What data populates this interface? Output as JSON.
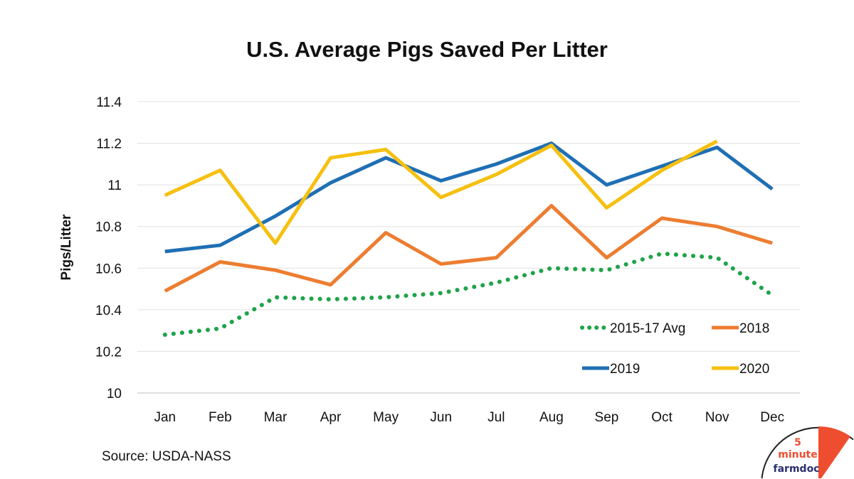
{
  "chart_data": {
    "type": "line",
    "title": "U.S. Average Pigs Saved Per Litter",
    "xlabel": "",
    "ylabel": "Pigs/Litter",
    "ylim": [
      10,
      11.4
    ],
    "yticks": [
      "10",
      "10.2",
      "10.4",
      "10.6",
      "10.8",
      "11",
      "11.2",
      "11.4"
    ],
    "grid": true,
    "legend_position": "bottom-right inside plot",
    "categories": [
      "Jan",
      "Feb",
      "Mar",
      "Apr",
      "May",
      "Jun",
      "Jul",
      "Aug",
      "Sep",
      "Oct",
      "Nov",
      "Dec"
    ],
    "series": [
      {
        "name": "2015-17 Avg",
        "color": "#1fa34a",
        "dash": "dotted",
        "values": [
          10.28,
          10.31,
          10.46,
          10.45,
          10.46,
          10.48,
          10.53,
          10.6,
          10.59,
          10.67,
          10.65,
          10.47
        ]
      },
      {
        "name": "2018",
        "color": "#ed7d31",
        "values": [
          10.49,
          10.63,
          10.59,
          10.52,
          10.77,
          10.62,
          10.65,
          10.9,
          10.65,
          10.84,
          10.8,
          10.72
        ]
      },
      {
        "name": "2019",
        "color": "#1f6fb4",
        "values": [
          10.68,
          10.71,
          10.85,
          11.01,
          11.13,
          11.02,
          11.1,
          11.2,
          11.0,
          11.09,
          11.18,
          10.98
        ]
      },
      {
        "name": "2020",
        "color": "#f5c00f",
        "values": [
          10.95,
          11.07,
          10.72,
          11.13,
          11.17,
          10.94,
          11.05,
          11.19,
          10.89,
          11.07,
          11.21,
          null
        ]
      }
    ]
  },
  "source": "Source: USDA-NASS",
  "logo": {
    "line1": "5",
    "line2": "minute",
    "line3": "farmdoc"
  }
}
